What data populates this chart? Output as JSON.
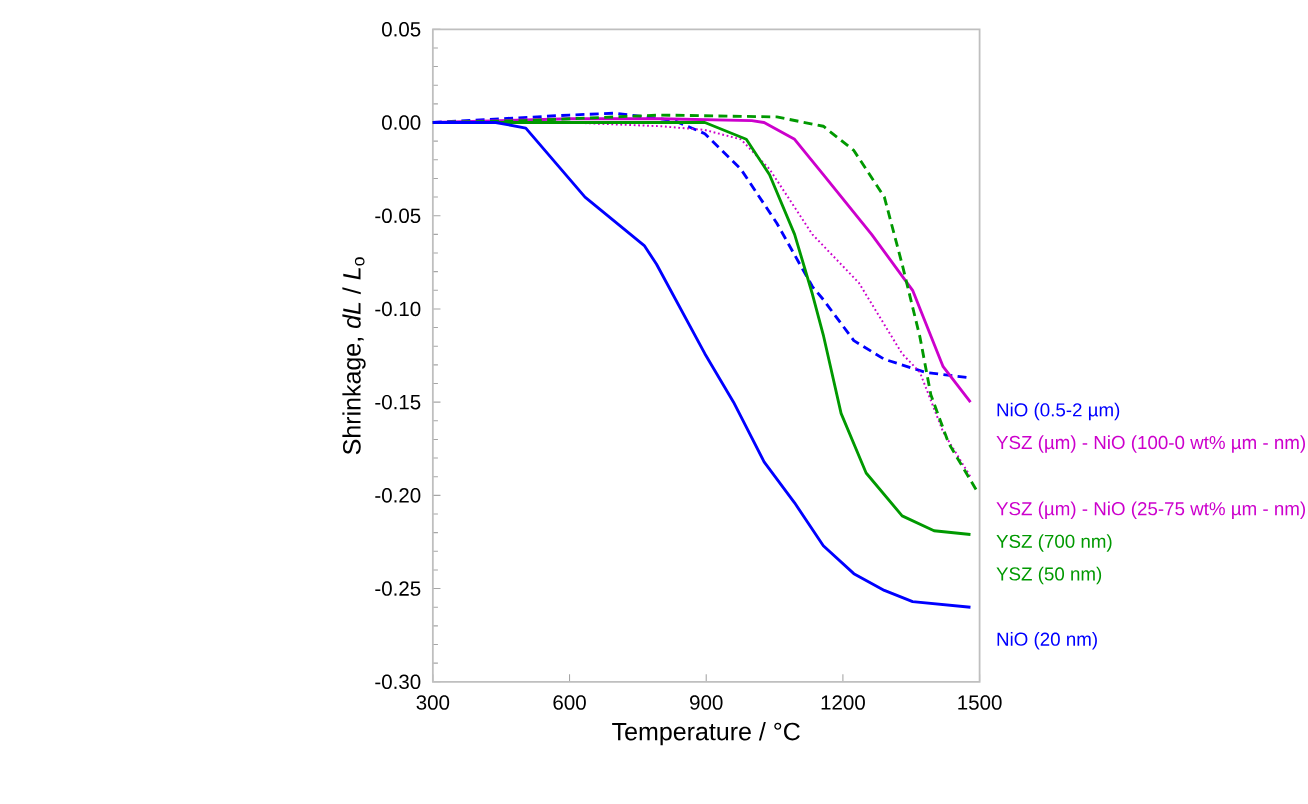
{
  "chart_data": {
    "type": "line",
    "xlabel": "Temperature / °C",
    "ylabel": "Shrinkage, *dL* / *L*$_{o}$",
    "xlim": [
      300,
      1500
    ],
    "ylim": [
      -0.3,
      0.05
    ],
    "xticks": [
      300,
      600,
      900,
      1200,
      1500
    ],
    "yticks": [
      {
        "value": 0.05,
        "label": "0.05"
      },
      {
        "value": 0,
        "label": "0.00"
      },
      {
        "value": -0.05,
        "label": "-0.05"
      },
      {
        "value": -0.1,
        "label": "-0.10"
      },
      {
        "value": -0.15,
        "label": "-0.15"
      },
      {
        "value": -0.2,
        "label": "-0.20"
      },
      {
        "value": -0.25,
        "label": "-0.25"
      },
      {
        "value": -0.3,
        "label": "-0.30"
      }
    ],
    "series": [
      {
        "name": "NiO (0.5-2 µm)",
        "color": "#0000ff",
        "line_style": "dashed",
        "x": [
          300,
          450,
          600,
          700,
          830,
          897,
          976,
          1055,
          1133,
          1157,
          1224,
          1291,
          1381,
          1480
        ],
        "values": [
          0,
          0.002,
          0.004,
          0.005,
          0.001,
          -0.006,
          -0.025,
          -0.054,
          -0.088,
          -0.095,
          -0.117,
          -0.127,
          -0.134,
          -0.137
        ]
      },
      {
        "name": "YSZ (µm) - NiO (100-0 wt% µm - nm)",
        "color": "#cc00cc",
        "line_style": "solid",
        "x": [
          300,
          600,
          800,
          1000,
          1027,
          1094,
          1157,
          1263,
          1353,
          1420,
          1480
        ],
        "values": [
          0,
          0.002,
          0.002,
          0.001,
          0,
          -0.009,
          -0.028,
          -0.06,
          -0.09,
          -0.131,
          -0.15
        ]
      },
      {
        "name": "YSZ (µm) - NiO (25-75 wt% µm - nm)",
        "color": "#cc00cc",
        "line_style": "dotted",
        "x": [
          300,
          600,
          800,
          897,
          976,
          1039,
          1133,
          1235,
          1330,
          1369,
          1420,
          1480
        ],
        "values": [
          0,
          0,
          -0.002,
          -0.004,
          -0.009,
          -0.025,
          -0.06,
          -0.086,
          -0.124,
          -0.134,
          -0.166,
          -0.19
        ]
      },
      {
        "name": "YSZ (700 nm)",
        "color": "#009900",
        "line_style": "dashed",
        "x": [
          300,
          500,
          800,
          1055,
          1157,
          1224,
          1291,
          1330,
          1369,
          1393,
          1432,
          1495
        ],
        "values": [
          0,
          0.001,
          0.004,
          0.003,
          -0.002,
          -0.015,
          -0.04,
          -0.076,
          -0.115,
          -0.146,
          -0.172,
          -0.198
        ]
      },
      {
        "name": "YSZ (50 nm)",
        "color": "#009900",
        "line_style": "solid",
        "x": [
          300,
          600,
          897,
          988,
          1039,
          1094,
          1133,
          1157,
          1196,
          1251,
          1330,
          1400,
          1480
        ],
        "values": [
          0,
          0,
          0,
          -0.009,
          -0.028,
          -0.06,
          -0.092,
          -0.114,
          -0.156,
          -0.188,
          -0.211,
          -0.219,
          -0.221
        ]
      },
      {
        "name": "NiO (20 nm)",
        "color": "#0000ff",
        "line_style": "solid",
        "x": [
          300,
          438,
          504,
          634,
          764,
          791,
          897,
          960,
          1027,
          1094,
          1157,
          1224,
          1291,
          1353,
          1480
        ],
        "values": [
          0,
          0,
          -0.003,
          -0.04,
          -0.066,
          -0.076,
          -0.124,
          -0.15,
          -0.182,
          -0.204,
          -0.227,
          -0.242,
          -0.251,
          -0.257,
          -0.26
        ]
      }
    ]
  }
}
